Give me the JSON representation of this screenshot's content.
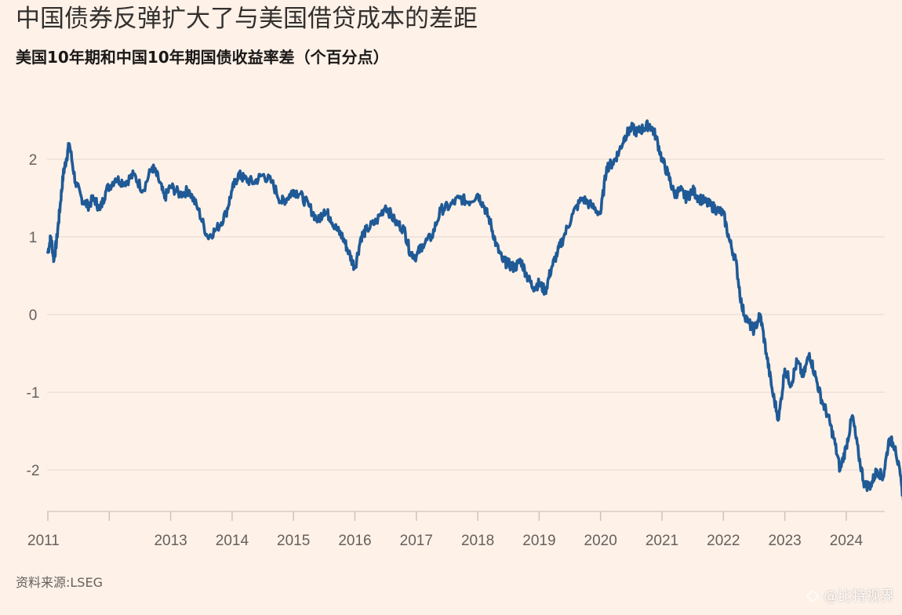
{
  "title": "中国债券反弹扩大了与美国借贷成本的差距",
  "subtitle": "美国10年期和中国10年期国债收益率差（个百分点）",
  "source": "资料来源:LSEG",
  "watermark": "@比特视界",
  "colors": {
    "background": "#fdf1e8",
    "line": "#1f5a96",
    "grid": "#e8ddd5"
  },
  "chart_data": {
    "type": "line",
    "title": "中国债券反弹扩大了与美国借贷成本的差距",
    "subtitle": "美国10年期和中国10年期国债收益率差（个百分点）",
    "xlabel": "",
    "ylabel": "",
    "ylim": [
      -2.5,
      2.5
    ],
    "yticks": [
      2,
      1,
      0,
      -1,
      -2
    ],
    "ytick_labels": [
      "2",
      "1",
      "0",
      "-1",
      "-2"
    ],
    "xlim": [
      2011.0,
      2025.0
    ],
    "xticks": [
      2011,
      2012,
      2013,
      2014,
      2015,
      2016,
      2017,
      2018,
      2019,
      2020,
      2021,
      2022,
      2023,
      2024
    ],
    "xtick_labels": [
      "2011",
      "",
      "2013",
      "2014",
      "2015",
      "2016",
      "2017",
      "2018",
      "2019",
      "2020",
      "2021",
      "2022",
      "2023",
      "2024"
    ],
    "grid": "horizontal",
    "legend": "none",
    "series": [
      {
        "x": [
          2011.0,
          2011.05,
          2011.1,
          2011.15,
          2011.2,
          2011.25,
          2011.3,
          2011.35,
          2011.45,
          2011.55,
          2011.65,
          2011.75,
          2011.85,
          2011.95,
          2012.1,
          2012.25,
          2012.4,
          2012.55,
          2012.7,
          2012.8,
          2012.9,
          2013.0,
          2013.15,
          2013.3,
          2013.45,
          2013.6,
          2013.75,
          2013.9,
          2014.0,
          2014.1,
          2014.2,
          2014.35,
          2014.5,
          2014.65,
          2014.8,
          2014.9,
          2015.0,
          2015.1,
          2015.25,
          2015.4,
          2015.5,
          2015.6,
          2015.7,
          2015.8,
          2015.9,
          2016.0,
          2016.1,
          2016.2,
          2016.35,
          2016.5,
          2016.65,
          2016.8,
          2016.9,
          2017.0,
          2017.1,
          2017.25,
          2017.4,
          2017.55,
          2017.7,
          2017.85,
          2018.0,
          2018.1,
          2018.2,
          2018.3,
          2018.4,
          2018.5,
          2018.6,
          2018.7,
          2018.8,
          2018.9,
          2019.0,
          2019.1,
          2019.2,
          2019.3,
          2019.4,
          2019.55,
          2019.7,
          2019.85,
          2020.0,
          2020.1,
          2020.2,
          2020.3,
          2020.4,
          2020.5,
          2020.6,
          2020.7,
          2020.8,
          2020.9,
          2021.0,
          2021.1,
          2021.2,
          2021.3,
          2021.4,
          2021.5,
          2021.6,
          2021.7,
          2021.8,
          2021.9,
          2022.0,
          2022.1,
          2022.2,
          2022.3,
          2022.4,
          2022.5,
          2022.6,
          2022.7,
          2022.8,
          2022.9,
          2023.0,
          2023.1,
          2023.2,
          2023.3,
          2023.4,
          2023.5,
          2023.6,
          2023.7,
          2023.8,
          2023.9,
          2024.0,
          2024.1,
          2024.2,
          2024.3,
          2024.4,
          2024.5,
          2024.6,
          2024.7,
          2024.8,
          2024.9,
          2024.96
        ],
        "y": [
          0.8,
          1.0,
          0.7,
          1.0,
          1.4,
          1.8,
          2.0,
          2.2,
          1.7,
          1.5,
          1.4,
          1.5,
          1.35,
          1.6,
          1.75,
          1.7,
          1.8,
          1.6,
          1.9,
          1.75,
          1.5,
          1.65,
          1.55,
          1.6,
          1.35,
          1.0,
          1.1,
          1.3,
          1.6,
          1.8,
          1.75,
          1.7,
          1.8,
          1.7,
          1.45,
          1.5,
          1.6,
          1.55,
          1.4,
          1.2,
          1.35,
          1.25,
          1.1,
          1.0,
          0.8,
          0.6,
          1.0,
          1.1,
          1.2,
          1.4,
          1.2,
          1.1,
          0.8,
          0.75,
          0.9,
          1.0,
          1.35,
          1.4,
          1.5,
          1.45,
          1.55,
          1.4,
          1.2,
          0.9,
          0.7,
          0.65,
          0.6,
          0.7,
          0.5,
          0.35,
          0.4,
          0.3,
          0.6,
          0.8,
          1.0,
          1.3,
          1.5,
          1.4,
          1.3,
          1.9,
          1.95,
          2.1,
          2.3,
          2.4,
          2.35,
          2.4,
          2.45,
          2.3,
          2.0,
          1.8,
          1.55,
          1.6,
          1.5,
          1.6,
          1.5,
          1.45,
          1.4,
          1.35,
          1.3,
          0.95,
          0.7,
          0.1,
          -0.1,
          -0.2,
          0.0,
          -0.5,
          -1.0,
          -1.35,
          -0.7,
          -0.9,
          -0.6,
          -0.8,
          -0.5,
          -0.8,
          -1.1,
          -1.3,
          -1.6,
          -2.0,
          -1.7,
          -1.3,
          -1.8,
          -2.2,
          -2.2,
          -2.0,
          -2.1,
          -1.6,
          -1.7,
          -2.2,
          -2.5
        ]
      }
    ]
  }
}
